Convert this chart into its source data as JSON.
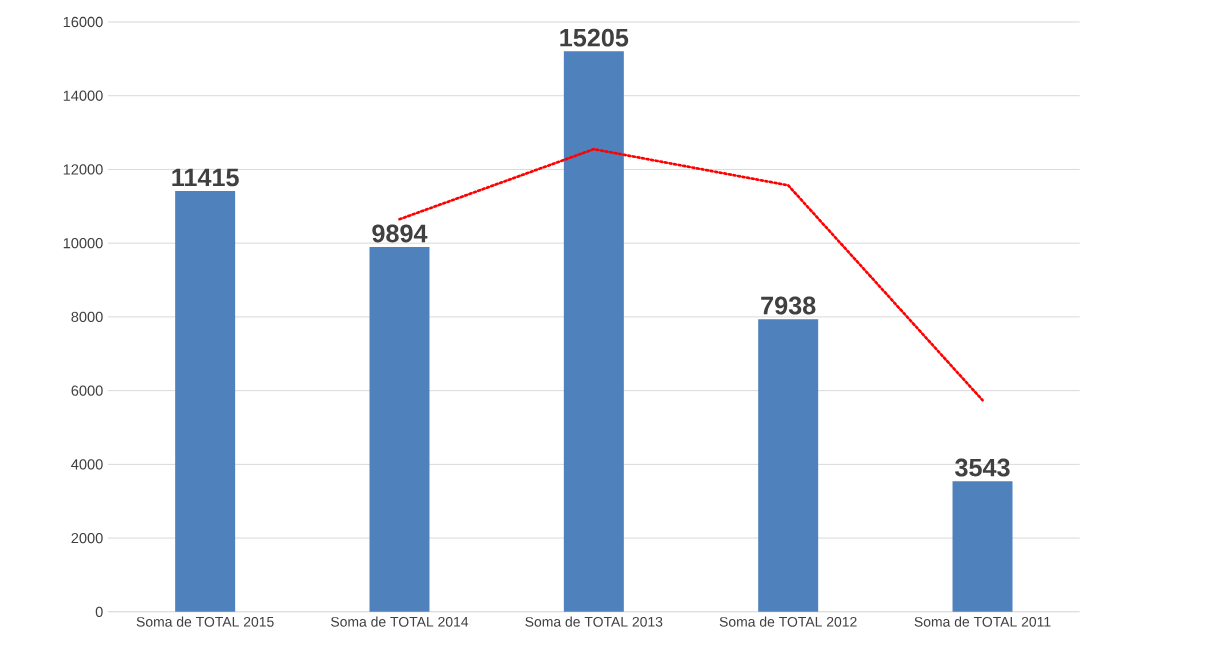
{
  "chart_data": {
    "type": "bar",
    "categories": [
      "Soma de TOTAL 2015",
      "Soma de TOTAL 2014",
      "Soma de TOTAL 2013",
      "Soma de TOTAL 2012",
      "Soma de TOTAL 2011"
    ],
    "series": [
      {
        "color": "#4f81bd",
        "values": [
          11415,
          9894,
          15205,
          7938,
          3543
        ],
        "value_labels": [
          "11415",
          "9894",
          "15205",
          "7938",
          "3543"
        ]
      },
      {
        "type": "line",
        "color": "#ff0000",
        "line_style": "dotted",
        "values": [
          null,
          10650,
          12550,
          11570,
          5740
        ]
      }
    ],
    "ylim": [
      0,
      16000
    ],
    "yticks": [
      0,
      2000,
      4000,
      6000,
      8000,
      10000,
      12000,
      14000,
      16000
    ],
    "grid": "y"
  }
}
